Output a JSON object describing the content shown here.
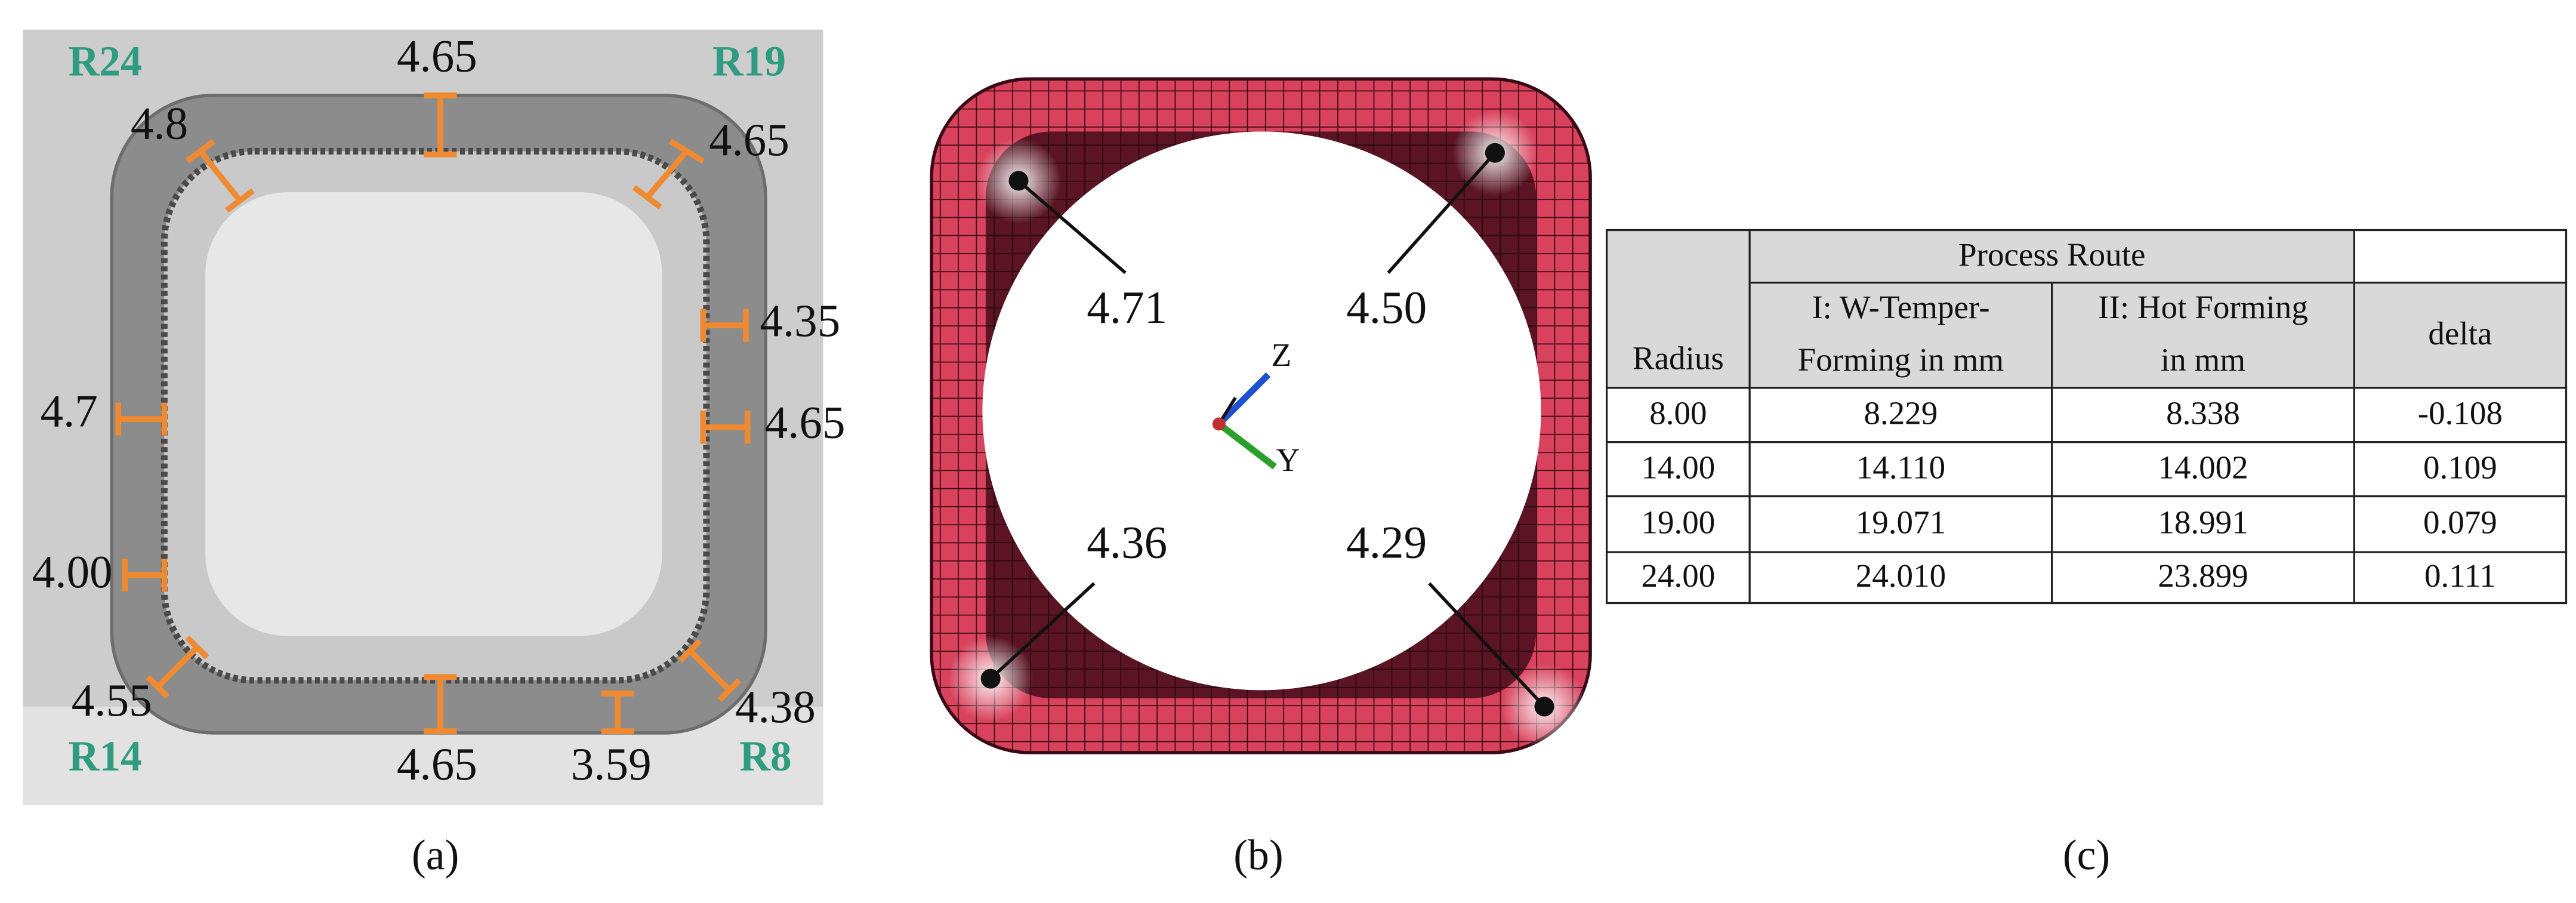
{
  "panel_a": {
    "radius_labels": [
      "R24",
      "R19",
      "R14",
      "R8"
    ],
    "thickness_labels": [
      "4.65",
      "4.8",
      "4.65",
      "4.35",
      "4.7",
      "4.65",
      "4.00",
      "4.55",
      "4.38",
      "4.65",
      "3.59"
    ],
    "caption": "(a)"
  },
  "panel_b": {
    "thickness_labels": [
      "4.71",
      "4.50",
      "4.36",
      "4.29"
    ],
    "axis_labels": [
      "Z",
      "Y"
    ],
    "caption": "(b)"
  },
  "panel_c": {
    "table": {
      "group_header": "Process Route",
      "headers": [
        [
          "Radius"
        ],
        [
          "I: W-Temper-",
          "Forming in mm"
        ],
        [
          "II: Hot Forming",
          "in mm"
        ],
        [
          "delta"
        ]
      ],
      "rows": [
        [
          "8.00",
          "8.229",
          "8.338",
          "-0.108"
        ],
        [
          "14.00",
          "14.110",
          "14.002",
          "0.109"
        ],
        [
          "19.00",
          "19.071",
          "18.991",
          "0.079"
        ],
        [
          "24.00",
          "24.010",
          "23.899",
          "0.111"
        ]
      ]
    },
    "caption": "(c)"
  }
}
